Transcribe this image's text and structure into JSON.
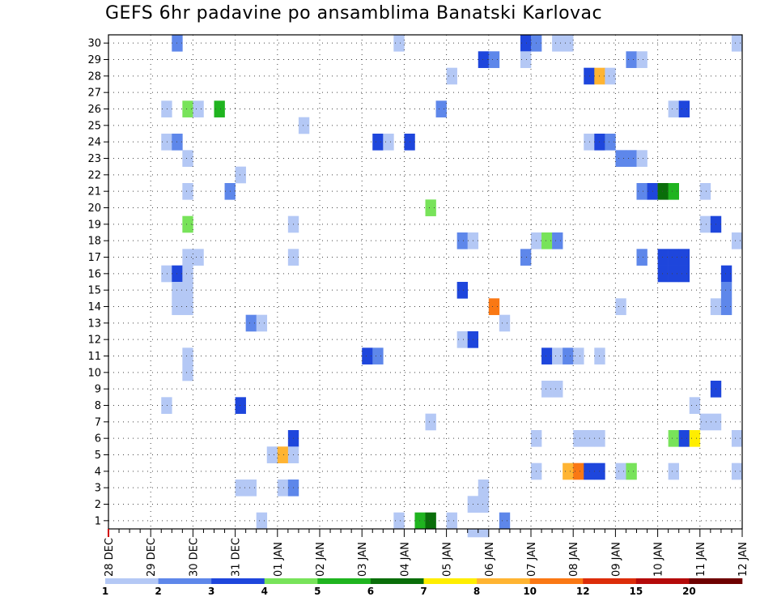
{
  "chart_data": {
    "type": "heatmap",
    "title": "GEFS 6hr padavine po ansamblima Banatski Karlovac",
    "x_tick_labels": [
      "28 DEC",
      "29 DEC",
      "30 DEC",
      "31 DEC",
      "01 JAN",
      "02 JAN",
      "03 JAN",
      "04 JAN",
      "05 JAN",
      "06 JAN",
      "07 JAN",
      "08 JAN",
      "09 JAN",
      "10 JAN",
      "11 JAN",
      "12 JAN"
    ],
    "y_tick_labels": [
      "1",
      "2",
      "3",
      "4",
      "5",
      "6",
      "7",
      "8",
      "9",
      "10",
      "11",
      "12",
      "13",
      "14",
      "15",
      "16",
      "17",
      "18",
      "19",
      "20",
      "21",
      "22",
      "23",
      "24",
      "25",
      "26",
      "27",
      "28",
      "29",
      "30"
    ],
    "xlim": [
      0,
      60
    ],
    "ylim": [
      0.5,
      30.5
    ],
    "grid": true,
    "colorbar": {
      "labels": [
        "1",
        "2",
        "3",
        "4",
        "5",
        "6",
        "7",
        "8",
        "10",
        "12",
        "15",
        "20"
      ],
      "colors": [
        "#b4c8f5",
        "#5e87ea",
        "#1e46dc",
        "#78e35a",
        "#1fb41f",
        "#0a6e0a",
        "#ffee00",
        "#ffb432",
        "#fa7814",
        "#dc2d0a",
        "#b40a0a",
        "#6e0000"
      ]
    },
    "cells": [
      [
        6,
        30,
        2
      ],
      [
        27,
        30,
        1
      ],
      [
        39,
        30,
        3
      ],
      [
        40,
        30,
        2
      ],
      [
        42,
        30,
        1
      ],
      [
        43,
        30,
        1
      ],
      [
        59,
        30,
        1
      ],
      [
        35,
        29,
        3
      ],
      [
        36,
        29,
        2
      ],
      [
        39,
        29,
        1
      ],
      [
        49,
        29,
        2
      ],
      [
        50,
        29,
        1
      ],
      [
        32,
        28,
        1
      ],
      [
        45,
        28,
        3
      ],
      [
        46,
        28,
        8
      ],
      [
        47,
        28,
        1
      ],
      [
        5,
        26,
        1
      ],
      [
        7,
        26,
        4
      ],
      [
        8,
        26,
        1
      ],
      [
        10,
        26,
        5
      ],
      [
        31,
        26,
        2
      ],
      [
        53,
        26,
        1
      ],
      [
        54,
        26,
        3
      ],
      [
        18,
        25,
        1
      ],
      [
        5,
        24,
        1
      ],
      [
        6,
        24,
        2
      ],
      [
        25,
        24,
        3
      ],
      [
        26,
        24,
        1
      ],
      [
        28,
        24,
        3
      ],
      [
        45,
        24,
        1
      ],
      [
        46,
        24,
        3
      ],
      [
        47,
        24,
        2
      ],
      [
        7,
        23,
        1
      ],
      [
        48,
        23,
        2
      ],
      [
        49,
        23,
        2
      ],
      [
        50,
        23,
        1
      ],
      [
        12,
        22,
        1
      ],
      [
        7,
        21,
        1
      ],
      [
        11,
        21,
        2
      ],
      [
        50,
        21,
        2
      ],
      [
        51,
        21,
        3
      ],
      [
        52,
        21,
        6
      ],
      [
        53,
        21,
        5
      ],
      [
        56,
        21,
        1
      ],
      [
        30,
        20,
        4
      ],
      [
        7,
        19,
        4
      ],
      [
        17,
        19,
        1
      ],
      [
        56,
        19,
        1
      ],
      [
        57,
        19,
        3
      ],
      [
        33,
        18,
        2
      ],
      [
        34,
        18,
        1
      ],
      [
        40,
        18,
        1
      ],
      [
        41,
        18,
        4
      ],
      [
        42,
        18,
        2
      ],
      [
        59,
        18,
        1
      ],
      [
        7,
        17,
        1
      ],
      [
        8,
        17,
        1
      ],
      [
        17,
        17,
        1
      ],
      [
        39,
        17,
        2
      ],
      [
        50,
        17,
        2
      ],
      [
        52,
        17,
        3
      ],
      [
        53,
        17,
        3
      ],
      [
        54,
        17,
        3
      ],
      [
        5,
        16,
        1
      ],
      [
        6,
        16,
        3
      ],
      [
        7,
        16,
        1
      ],
      [
        52,
        16,
        3
      ],
      [
        53,
        16,
        3
      ],
      [
        54,
        16,
        3
      ],
      [
        58,
        16,
        3
      ],
      [
        6,
        15,
        1
      ],
      [
        7,
        15,
        1
      ],
      [
        33,
        15,
        3
      ],
      [
        58,
        15,
        2
      ],
      [
        6,
        14,
        1
      ],
      [
        7,
        14,
        1
      ],
      [
        36,
        14,
        9
      ],
      [
        48,
        14,
        1
      ],
      [
        57,
        14,
        1
      ],
      [
        58,
        14,
        2
      ],
      [
        13,
        13,
        2
      ],
      [
        14,
        13,
        1
      ],
      [
        37,
        13,
        1
      ],
      [
        33,
        12,
        1
      ],
      [
        34,
        12,
        3
      ],
      [
        7,
        11,
        1
      ],
      [
        24,
        11,
        3
      ],
      [
        25,
        11,
        2
      ],
      [
        41,
        11,
        3
      ],
      [
        42,
        11,
        1
      ],
      [
        43,
        11,
        2
      ],
      [
        44,
        11,
        1
      ],
      [
        46,
        11,
        1
      ],
      [
        7,
        10,
        1
      ],
      [
        41,
        9,
        1
      ],
      [
        42,
        9,
        1
      ],
      [
        57,
        9,
        3
      ],
      [
        5,
        8,
        1
      ],
      [
        12,
        8,
        3
      ],
      [
        55,
        8,
        1
      ],
      [
        30,
        7,
        1
      ],
      [
        56,
        7,
        1
      ],
      [
        57,
        7,
        1
      ],
      [
        17,
        6,
        3
      ],
      [
        40,
        6,
        1
      ],
      [
        44,
        6,
        1
      ],
      [
        45,
        6,
        1
      ],
      [
        46,
        6,
        1
      ],
      [
        53,
        6,
        4
      ],
      [
        54,
        6,
        3
      ],
      [
        55,
        6,
        7
      ],
      [
        59,
        6,
        1
      ],
      [
        15,
        5,
        1
      ],
      [
        16,
        5,
        8
      ],
      [
        17,
        5,
        1
      ],
      [
        40,
        4,
        1
      ],
      [
        43,
        4,
        8
      ],
      [
        44,
        4,
        9
      ],
      [
        45,
        4,
        3
      ],
      [
        46,
        4,
        3
      ],
      [
        48,
        4,
        1
      ],
      [
        49,
        4,
        4
      ],
      [
        53,
        4,
        1
      ],
      [
        59,
        4,
        1
      ],
      [
        12,
        3,
        1
      ],
      [
        13,
        3,
        1
      ],
      [
        16,
        3,
        1
      ],
      [
        17,
        3,
        2
      ],
      [
        35,
        3,
        1
      ],
      [
        34,
        2,
        1
      ],
      [
        35,
        2,
        1
      ],
      [
        14,
        1,
        1
      ],
      [
        27,
        1,
        1
      ],
      [
        29,
        1,
        5
      ],
      [
        30,
        1,
        6
      ],
      [
        32,
        1,
        1
      ],
      [
        37,
        1,
        2
      ],
      [
        34,
        0,
        1
      ],
      [
        35,
        0,
        1
      ]
    ]
  }
}
